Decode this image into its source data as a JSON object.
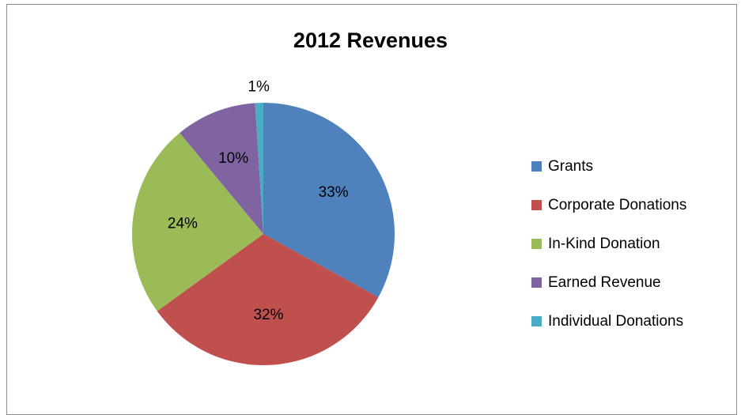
{
  "chart_data": {
    "type": "pie",
    "title": "2012 Revenues",
    "categories": [
      "Grants",
      "Corporate Donations",
      "In-Kind Donation",
      "Earned Revenue",
      "Individual Donations"
    ],
    "values": [
      33,
      32,
      24,
      10,
      1
    ],
    "labels": [
      "33%",
      "32%",
      "24%",
      "10%",
      "1%"
    ],
    "colors": [
      "#4f81bd",
      "#c0504d",
      "#9bbb59",
      "#8064a2",
      "#4bacc6"
    ],
    "legend_position": "right"
  }
}
